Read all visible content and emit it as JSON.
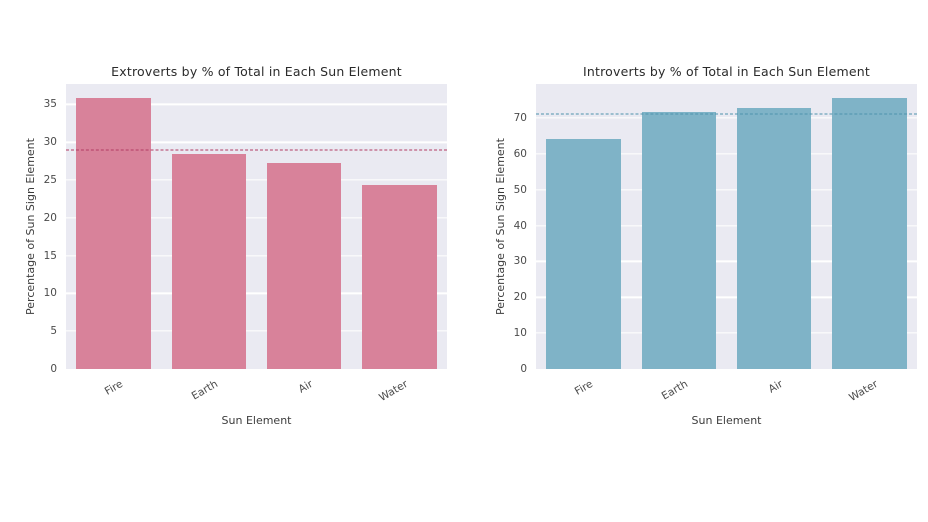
{
  "figure": {
    "background": "#ffffff",
    "plot_background": "#eaeaf2",
    "grid_color": "#ffffff"
  },
  "chart_data": [
    {
      "type": "bar",
      "title": "Extroverts by % of Total in Each Sun Element",
      "xlabel": "Sun Element",
      "ylabel": "Percentage of Sun Sign Element",
      "categories": [
        "Fire",
        "Earth",
        "Air",
        "Water"
      ],
      "values": [
        35.9,
        28.4,
        27.2,
        24.3
      ],
      "yticks": [
        0,
        5,
        10,
        15,
        20,
        25,
        30,
        35
      ],
      "ylim": [
        0,
        37.7
      ],
      "bar_color": "#d8829a",
      "plot_bg": "#eaeaf2",
      "grid": true,
      "grid_color": "#ffffff",
      "legend": "none",
      "xtick_rotation": 30,
      "ref_line": {
        "value": 28.95,
        "style": "dashed",
        "color": "#b23b62"
      }
    },
    {
      "type": "bar",
      "title": "Introverts by % of Total in Each Sun Element",
      "xlabel": "Sun Element",
      "ylabel": "Percentage of Sun Sign Element",
      "categories": [
        "Fire",
        "Earth",
        "Air",
        "Water"
      ],
      "values": [
        64.1,
        71.6,
        72.8,
        75.7
      ],
      "yticks": [
        0,
        10,
        20,
        30,
        40,
        50,
        60,
        70
      ],
      "ylim": [
        0,
        79.5
      ],
      "bar_color": "#7fb3c7",
      "plot_bg": "#eaeaf2",
      "grid": true,
      "grid_color": "#ffffff",
      "legend": "none",
      "xtick_rotation": 30,
      "ref_line": {
        "value": 71.05,
        "style": "dashed",
        "color": "#4d93ac"
      }
    }
  ]
}
